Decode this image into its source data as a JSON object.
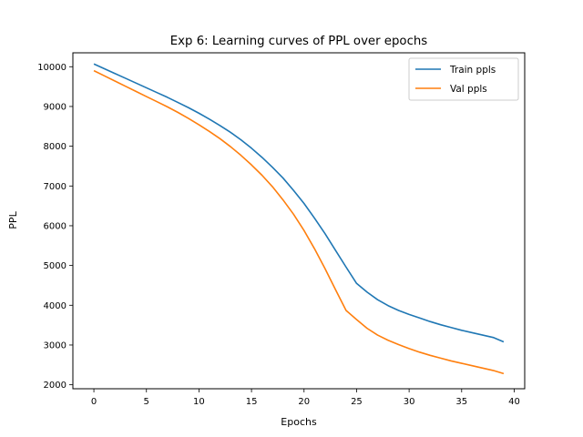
{
  "chart_data": {
    "type": "line",
    "title": "Exp 6: Learning curves of PPL over epochs",
    "xlabel": "Epochs",
    "ylabel": "PPL",
    "xlim": [
      -2,
      41
    ],
    "ylim": [
      1900,
      10350
    ],
    "xticks": [
      0,
      5,
      10,
      15,
      20,
      25,
      30,
      35,
      40
    ],
    "yticks": [
      2000,
      3000,
      4000,
      5000,
      6000,
      7000,
      8000,
      9000,
      10000
    ],
    "grid": false,
    "legend_position": "top-right",
    "x": [
      0,
      1,
      2,
      3,
      4,
      5,
      6,
      7,
      8,
      9,
      10,
      11,
      12,
      13,
      14,
      15,
      16,
      17,
      18,
      19,
      20,
      21,
      22,
      23,
      24,
      25,
      26,
      27,
      28,
      29,
      30,
      31,
      32,
      33,
      34,
      35,
      36,
      37,
      38,
      39
    ],
    "series": [
      {
        "name": "Train ppls",
        "color": "#1f77b4",
        "values": [
          10070,
          9950,
          9830,
          9710,
          9590,
          9470,
          9350,
          9230,
          9100,
          8970,
          8830,
          8680,
          8520,
          8350,
          8160,
          7950,
          7720,
          7470,
          7200,
          6890,
          6560,
          6190,
          5800,
          5380,
          4960,
          4550,
          4330,
          4140,
          3990,
          3870,
          3770,
          3680,
          3590,
          3510,
          3440,
          3370,
          3310,
          3250,
          3190,
          3080
        ]
      },
      {
        "name": "Val ppls",
        "color": "#ff7f0e",
        "values": [
          9900,
          9770,
          9640,
          9510,
          9380,
          9250,
          9120,
          8990,
          8850,
          8700,
          8540,
          8370,
          8190,
          7990,
          7770,
          7530,
          7270,
          6980,
          6650,
          6290,
          5880,
          5420,
          4920,
          4390,
          3870,
          3640,
          3420,
          3250,
          3120,
          3010,
          2910,
          2820,
          2740,
          2670,
          2600,
          2540,
          2480,
          2420,
          2360,
          2280
        ]
      }
    ]
  }
}
